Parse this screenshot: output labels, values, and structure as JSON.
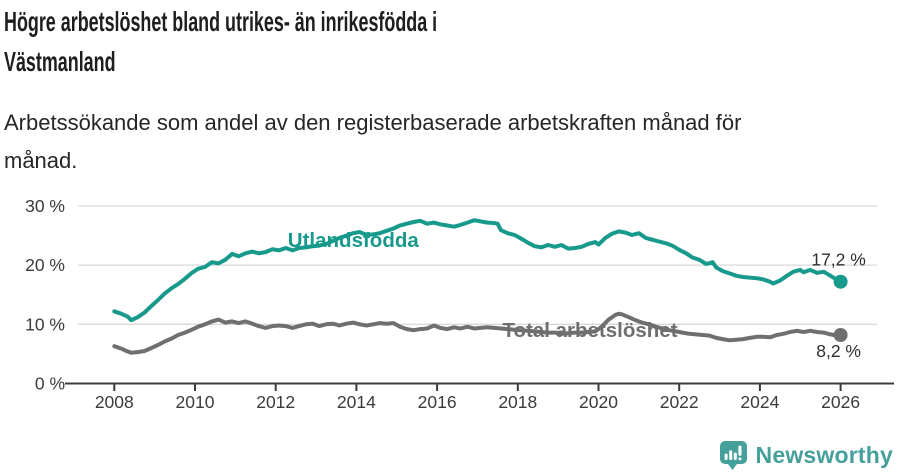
{
  "title": "Högre arbetslöshet bland utrikes- än inrikesfödda i\nVästmanland",
  "subtitle": "Arbetssökande som andel av den registerbaserade arbetskraften månad för\nmånad.",
  "footer": {
    "brand": "Newsworthy"
  },
  "colors": {
    "accent_teal": "#17998b",
    "line_gray": "#6f6f6f",
    "axis": "#3b3b3b",
    "grid": "#d9d9d9",
    "value_label": "#2d2d2d",
    "brand_teal": "#45a09c"
  },
  "chart_data": {
    "type": "line",
    "title": "Högre arbetslöshet bland utrikes- än inrikesfödda i Västmanland",
    "subtitle": "Arbetssökande som andel av den registerbaserade arbetskraften månad för månad.",
    "xlabel": "",
    "ylabel": "",
    "xlim": [
      2006.8,
      2027.3
    ],
    "ylim": [
      0,
      31
    ],
    "grid": "horizontal",
    "legend_position": "inline-labels",
    "x_axis": {
      "ticks": [
        2008,
        2010,
        2012,
        2014,
        2016,
        2018,
        2020,
        2022,
        2024,
        2026
      ]
    },
    "y_axis": {
      "ticks": [
        {
          "value": 0,
          "label": "0 %"
        },
        {
          "value": 10,
          "label": "10 %"
        },
        {
          "value": 20,
          "label": "20 %"
        },
        {
          "value": 30,
          "label": "30 %"
        }
      ]
    },
    "series": [
      {
        "name": "Utlandsfödda",
        "color": "#17998b",
        "end_value_label": "17,2 %",
        "end_value": 17.2,
        "label_anchor": {
          "x": 2012.3,
          "y": 23.1
        },
        "value_label_dy": -16,
        "points": [
          [
            2008.0,
            12.2
          ],
          [
            2008.17,
            11.8
          ],
          [
            2008.33,
            11.3
          ],
          [
            2008.42,
            10.7
          ],
          [
            2008.58,
            11.2
          ],
          [
            2008.75,
            12.0
          ],
          [
            2008.92,
            13.1
          ],
          [
            2009.08,
            14.1
          ],
          [
            2009.25,
            15.2
          ],
          [
            2009.42,
            16.1
          ],
          [
            2009.58,
            16.8
          ],
          [
            2009.75,
            17.7
          ],
          [
            2009.92,
            18.7
          ],
          [
            2010.08,
            19.4
          ],
          [
            2010.25,
            19.7
          ],
          [
            2010.42,
            20.5
          ],
          [
            2010.58,
            20.3
          ],
          [
            2010.75,
            20.9
          ],
          [
            2010.92,
            21.9
          ],
          [
            2011.08,
            21.5
          ],
          [
            2011.25,
            22.0
          ],
          [
            2011.42,
            22.3
          ],
          [
            2011.58,
            22.0
          ],
          [
            2011.75,
            22.2
          ],
          [
            2011.92,
            22.7
          ],
          [
            2012.08,
            22.5
          ],
          [
            2012.25,
            22.9
          ],
          [
            2012.42,
            22.5
          ],
          [
            2012.58,
            22.9
          ],
          [
            2012.75,
            23.0
          ],
          [
            2012.92,
            23.2
          ],
          [
            2013.08,
            23.3
          ],
          [
            2013.25,
            23.6
          ],
          [
            2013.42,
            24.1
          ],
          [
            2013.58,
            24.6
          ],
          [
            2013.75,
            25.0
          ],
          [
            2013.92,
            25.4
          ],
          [
            2014.08,
            25.6
          ],
          [
            2014.25,
            25.1
          ],
          [
            2014.42,
            25.2
          ],
          [
            2014.58,
            25.4
          ],
          [
            2014.75,
            25.8
          ],
          [
            2014.92,
            26.2
          ],
          [
            2015.08,
            26.7
          ],
          [
            2015.25,
            27.0
          ],
          [
            2015.42,
            27.3
          ],
          [
            2015.58,
            27.5
          ],
          [
            2015.75,
            27.0
          ],
          [
            2015.92,
            27.2
          ],
          [
            2016.08,
            26.9
          ],
          [
            2016.25,
            26.7
          ],
          [
            2016.42,
            26.5
          ],
          [
            2016.58,
            26.8
          ],
          [
            2016.75,
            27.2
          ],
          [
            2016.92,
            27.6
          ],
          [
            2017.08,
            27.4
          ],
          [
            2017.25,
            27.2
          ],
          [
            2017.42,
            27.1
          ],
          [
            2017.5,
            27.0
          ],
          [
            2017.58,
            25.9
          ],
          [
            2017.75,
            25.4
          ],
          [
            2017.92,
            25.1
          ],
          [
            2018.08,
            24.5
          ],
          [
            2018.25,
            23.8
          ],
          [
            2018.42,
            23.2
          ],
          [
            2018.58,
            23.0
          ],
          [
            2018.75,
            23.4
          ],
          [
            2018.92,
            23.1
          ],
          [
            2019.08,
            23.4
          ],
          [
            2019.25,
            22.8
          ],
          [
            2019.42,
            22.9
          ],
          [
            2019.58,
            23.1
          ],
          [
            2019.75,
            23.6
          ],
          [
            2019.92,
            23.9
          ],
          [
            2020.0,
            23.5
          ],
          [
            2020.17,
            24.6
          ],
          [
            2020.33,
            25.3
          ],
          [
            2020.5,
            25.7
          ],
          [
            2020.67,
            25.5
          ],
          [
            2020.83,
            25.1
          ],
          [
            2021.0,
            25.4
          ],
          [
            2021.17,
            24.6
          ],
          [
            2021.33,
            24.3
          ],
          [
            2021.5,
            24.0
          ],
          [
            2021.67,
            23.7
          ],
          [
            2021.83,
            23.3
          ],
          [
            2022.0,
            22.6
          ],
          [
            2022.17,
            22.0
          ],
          [
            2022.33,
            21.3
          ],
          [
            2022.5,
            20.9
          ],
          [
            2022.67,
            20.2
          ],
          [
            2022.83,
            20.5
          ],
          [
            2022.92,
            19.6
          ],
          [
            2023.08,
            19.0
          ],
          [
            2023.25,
            18.6
          ],
          [
            2023.42,
            18.2
          ],
          [
            2023.58,
            18.0
          ],
          [
            2023.75,
            17.9
          ],
          [
            2023.92,
            17.8
          ],
          [
            2024.08,
            17.6
          ],
          [
            2024.25,
            17.2
          ],
          [
            2024.33,
            16.9
          ],
          [
            2024.5,
            17.4
          ],
          [
            2024.67,
            18.2
          ],
          [
            2024.83,
            18.9
          ],
          [
            2025.0,
            19.2
          ],
          [
            2025.08,
            18.8
          ],
          [
            2025.25,
            19.2
          ],
          [
            2025.42,
            18.7
          ],
          [
            2025.58,
            18.9
          ],
          [
            2025.75,
            18.2
          ],
          [
            2025.92,
            17.5
          ],
          [
            2026.0,
            17.2
          ]
        ]
      },
      {
        "name": "Total arbetslöshet",
        "color": "#6f6f6f",
        "end_value_label": "8,2 %",
        "end_value": 8.2,
        "label_anchor": {
          "x": 2017.62,
          "y": 7.9
        },
        "value_label_dy": 22,
        "points": [
          [
            2008.0,
            6.3
          ],
          [
            2008.17,
            5.9
          ],
          [
            2008.33,
            5.4
          ],
          [
            2008.42,
            5.2
          ],
          [
            2008.58,
            5.3
          ],
          [
            2008.75,
            5.5
          ],
          [
            2008.92,
            6.0
          ],
          [
            2009.08,
            6.5
          ],
          [
            2009.25,
            7.1
          ],
          [
            2009.42,
            7.6
          ],
          [
            2009.58,
            8.2
          ],
          [
            2009.75,
            8.6
          ],
          [
            2009.92,
            9.1
          ],
          [
            2010.08,
            9.6
          ],
          [
            2010.25,
            10.0
          ],
          [
            2010.42,
            10.5
          ],
          [
            2010.58,
            10.8
          ],
          [
            2010.75,
            10.3
          ],
          [
            2010.92,
            10.5
          ],
          [
            2011.08,
            10.2
          ],
          [
            2011.25,
            10.5
          ],
          [
            2011.42,
            10.1
          ],
          [
            2011.58,
            9.7
          ],
          [
            2011.75,
            9.4
          ],
          [
            2011.92,
            9.7
          ],
          [
            2012.08,
            9.8
          ],
          [
            2012.25,
            9.7
          ],
          [
            2012.42,
            9.4
          ],
          [
            2012.58,
            9.7
          ],
          [
            2012.75,
            10.0
          ],
          [
            2012.92,
            10.1
          ],
          [
            2013.08,
            9.7
          ],
          [
            2013.25,
            10.0
          ],
          [
            2013.42,
            10.1
          ],
          [
            2013.58,
            9.8
          ],
          [
            2013.75,
            10.1
          ],
          [
            2013.92,
            10.3
          ],
          [
            2014.08,
            10.0
          ],
          [
            2014.25,
            9.8
          ],
          [
            2014.42,
            10.0
          ],
          [
            2014.58,
            10.2
          ],
          [
            2014.75,
            10.1
          ],
          [
            2014.92,
            10.2
          ],
          [
            2015.08,
            9.6
          ],
          [
            2015.25,
            9.2
          ],
          [
            2015.42,
            9.0
          ],
          [
            2015.58,
            9.2
          ],
          [
            2015.75,
            9.3
          ],
          [
            2015.92,
            9.8
          ],
          [
            2016.08,
            9.4
          ],
          [
            2016.25,
            9.2
          ],
          [
            2016.42,
            9.5
          ],
          [
            2016.58,
            9.3
          ],
          [
            2016.75,
            9.6
          ],
          [
            2016.92,
            9.3
          ],
          [
            2017.08,
            9.4
          ],
          [
            2017.25,
            9.5
          ],
          [
            2017.42,
            9.4
          ],
          [
            2017.58,
            9.3
          ],
          [
            2017.75,
            9.2
          ],
          [
            2017.92,
            9.1
          ],
          [
            2018.08,
            9.0
          ],
          [
            2018.25,
            8.9
          ],
          [
            2018.42,
            8.8
          ],
          [
            2018.58,
            8.7
          ],
          [
            2018.75,
            8.6
          ],
          [
            2018.92,
            8.6
          ],
          [
            2019.08,
            8.5
          ],
          [
            2019.25,
            8.5
          ],
          [
            2019.42,
            8.6
          ],
          [
            2019.58,
            8.6
          ],
          [
            2019.75,
            8.7
          ],
          [
            2019.92,
            8.8
          ],
          [
            2020.08,
            9.6
          ],
          [
            2020.25,
            10.8
          ],
          [
            2020.42,
            11.6
          ],
          [
            2020.5,
            11.8
          ],
          [
            2020.58,
            11.7
          ],
          [
            2020.75,
            11.2
          ],
          [
            2020.92,
            10.7
          ],
          [
            2021.08,
            10.3
          ],
          [
            2021.25,
            10.0
          ],
          [
            2021.42,
            9.6
          ],
          [
            2021.58,
            9.3
          ],
          [
            2021.75,
            9.0
          ],
          [
            2021.92,
            8.8
          ],
          [
            2022.08,
            8.6
          ],
          [
            2022.25,
            8.4
          ],
          [
            2022.42,
            8.3
          ],
          [
            2022.58,
            8.2
          ],
          [
            2022.75,
            8.1
          ],
          [
            2022.92,
            7.7
          ],
          [
            2023.08,
            7.5
          ],
          [
            2023.25,
            7.3
          ],
          [
            2023.42,
            7.4
          ],
          [
            2023.58,
            7.5
          ],
          [
            2023.75,
            7.7
          ],
          [
            2023.92,
            7.9
          ],
          [
            2024.08,
            7.9
          ],
          [
            2024.25,
            7.8
          ],
          [
            2024.42,
            8.2
          ],
          [
            2024.58,
            8.4
          ],
          [
            2024.75,
            8.7
          ],
          [
            2024.92,
            8.9
          ],
          [
            2025.08,
            8.7
          ],
          [
            2025.25,
            8.9
          ],
          [
            2025.42,
            8.7
          ],
          [
            2025.58,
            8.6
          ],
          [
            2025.75,
            8.3
          ],
          [
            2025.92,
            8.1
          ],
          [
            2026.0,
            8.2
          ]
        ]
      }
    ]
  }
}
